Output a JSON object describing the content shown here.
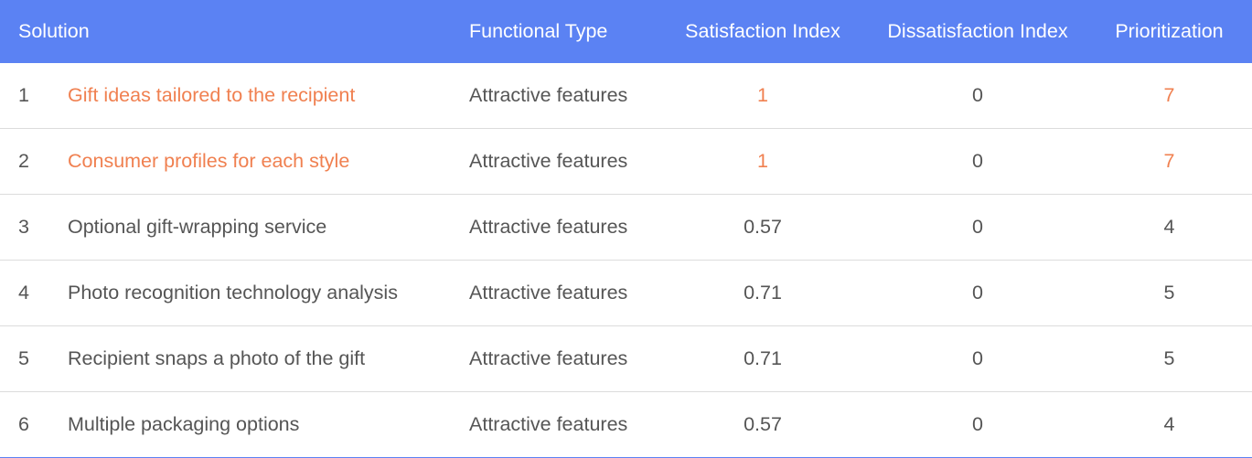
{
  "colors": {
    "header_bg": "#5b82f3",
    "header_text": "#ffffff",
    "body_text": "#555555",
    "highlight_text": "#f08050",
    "row_divider": "#dcdcdc"
  },
  "table": {
    "headers": {
      "solution": "Solution",
      "functional_type": "Functional Type",
      "satisfaction_index": "Satisfaction Index",
      "dissatisfaction_index": "Dissatisfaction Index",
      "prioritization": "Prioritization"
    },
    "rows": [
      {
        "num": "1",
        "solution": "Gift ideas tailored to the recipient",
        "functional_type": "Attractive features",
        "satisfaction_index": "1",
        "dissatisfaction_index": "0",
        "prioritization": "7",
        "highlighted": true
      },
      {
        "num": "2",
        "solution": "Consumer profiles for each style",
        "functional_type": "Attractive features",
        "satisfaction_index": "1",
        "dissatisfaction_index": "0",
        "prioritization": "7",
        "highlighted": true
      },
      {
        "num": "3",
        "solution": "Optional gift-wrapping service",
        "functional_type": "Attractive features",
        "satisfaction_index": "0.57",
        "dissatisfaction_index": "0",
        "prioritization": "4",
        "highlighted": false
      },
      {
        "num": "4",
        "solution": "Photo recognition technology analysis",
        "functional_type": "Attractive features",
        "satisfaction_index": "0.71",
        "dissatisfaction_index": "0",
        "prioritization": "5",
        "highlighted": false
      },
      {
        "num": "5",
        "solution": "Recipient snaps a photo of the gift",
        "functional_type": "Attractive features",
        "satisfaction_index": "0.71",
        "dissatisfaction_index": "0",
        "prioritization": "5",
        "highlighted": false
      },
      {
        "num": "6",
        "solution": "Multiple packaging options",
        "functional_type": "Attractive features",
        "satisfaction_index": "0.57",
        "dissatisfaction_index": "0",
        "prioritization": "4",
        "highlighted": false
      }
    ]
  }
}
